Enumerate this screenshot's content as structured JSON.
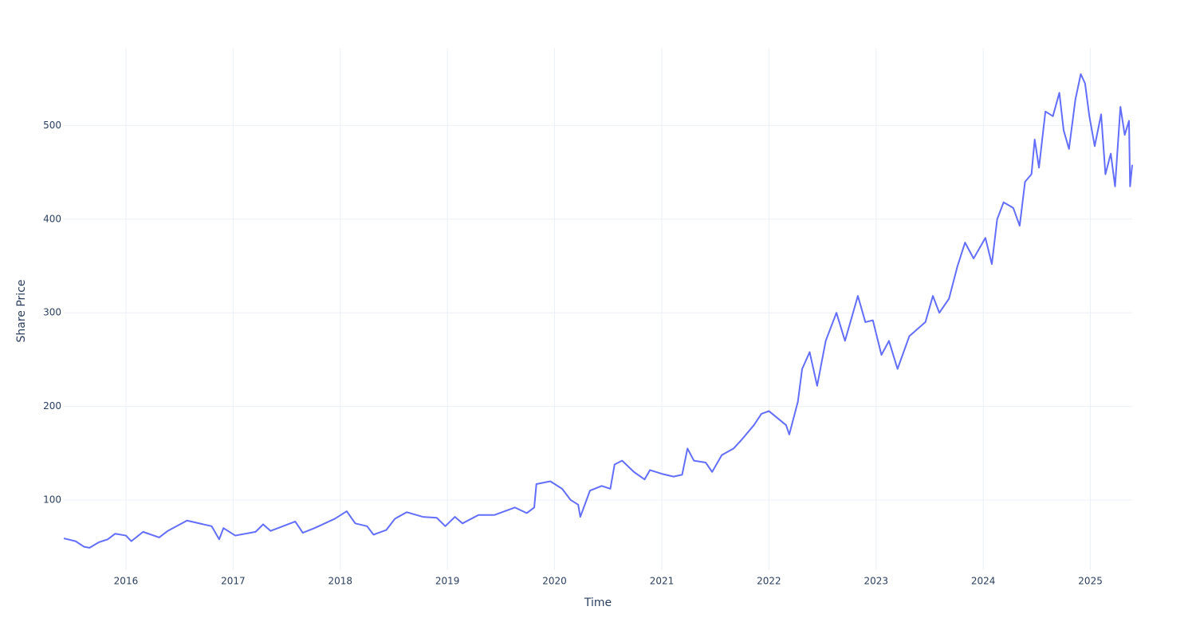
{
  "chart_data": {
    "type": "line",
    "x_label": "Time",
    "y_label": "Share Price",
    "x": [
      2015.42,
      2015.53,
      2015.61,
      2015.66,
      2015.75,
      2015.83,
      2015.9,
      2016.0,
      2016.05,
      2016.16,
      2016.31,
      2016.39,
      2016.57,
      2016.8,
      2016.87,
      2016.91,
      2017.02,
      2017.21,
      2017.28,
      2017.35,
      2017.58,
      2017.65,
      2017.76,
      2017.95,
      2018.06,
      2018.14,
      2018.25,
      2018.31,
      2018.43,
      2018.51,
      2018.62,
      2018.77,
      2018.9,
      2018.98,
      2019.07,
      2019.14,
      2019.29,
      2019.44,
      2019.63,
      2019.74,
      2019.81,
      2019.83,
      2019.96,
      2020.07,
      2020.15,
      2020.22,
      2020.24,
      2020.33,
      2020.44,
      2020.52,
      2020.56,
      2020.63,
      2020.74,
      2020.84,
      2020.89,
      2021.0,
      2021.11,
      2021.19,
      2021.24,
      2021.3,
      2021.41,
      2021.47,
      2021.56,
      2021.67,
      2021.75,
      2021.86,
      2021.93,
      2022.0,
      2022.16,
      2022.19,
      2022.27,
      2022.31,
      2022.38,
      2022.45,
      2022.53,
      2022.63,
      2022.71,
      2022.83,
      2022.9,
      2022.97,
      2023.05,
      2023.12,
      2023.2,
      2023.31,
      2023.46,
      2023.53,
      2023.59,
      2023.68,
      2023.76,
      2023.83,
      2023.91,
      2024.02,
      2024.08,
      2024.13,
      2024.19,
      2024.28,
      2024.34,
      2024.39,
      2024.45,
      2024.48,
      2024.52,
      2024.58,
      2024.65,
      2024.71,
      2024.75,
      2024.8,
      2024.86,
      2024.91,
      2024.95,
      2024.99,
      2025.04,
      2025.1,
      2025.14,
      2025.19,
      2025.23,
      2025.28,
      2025.32,
      2025.36,
      2025.37,
      2025.39
    ],
    "series": [
      {
        "color": "#636efa",
        "values": [
          59,
          56,
          50,
          49,
          55,
          58,
          64,
          62,
          56,
          66,
          60,
          67,
          78,
          72,
          58,
          70,
          62,
          66,
          74,
          67,
          77,
          65,
          70,
          80,
          88,
          75,
          72,
          63,
          68,
          80,
          87,
          82,
          81,
          72,
          82,
          75,
          84,
          84,
          92,
          86,
          92,
          117,
          120,
          112,
          100,
          95,
          82,
          110,
          115,
          112,
          138,
          142,
          130,
          122,
          132,
          128,
          125,
          127,
          155,
          142,
          140,
          130,
          148,
          155,
          165,
          180,
          192,
          195,
          180,
          170,
          205,
          240,
          258,
          222,
          270,
          300,
          270,
          318,
          290,
          292,
          255,
          270,
          240,
          275,
          290,
          318,
          300,
          315,
          350,
          375,
          358,
          380,
          352,
          400,
          418,
          412,
          393,
          440,
          448,
          485,
          455,
          515,
          510,
          535,
          495,
          475,
          528,
          555,
          545,
          510,
          478,
          512,
          448,
          470,
          435,
          520,
          490,
          505,
          435,
          458
        ]
      }
    ],
    "xlim": [
      2015.42,
      2025.39
    ],
    "ylim": [
      25,
      583
    ],
    "xticks": [
      2016,
      2017,
      2018,
      2019,
      2020,
      2021,
      2022,
      2023,
      2024,
      2025
    ],
    "yticks": [
      100,
      200,
      300,
      400,
      500
    ],
    "grid": true
  }
}
